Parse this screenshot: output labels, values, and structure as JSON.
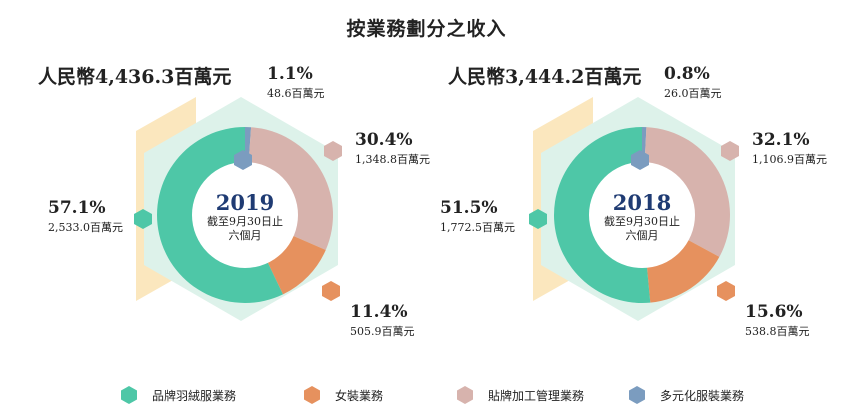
{
  "title": "按業務劃分之收入",
  "colors": {
    "branded": "#4ec7a7",
    "womens": "#e6915e",
    "oem": "#d7b3ad",
    "diversified": "#7b9cbf",
    "hex_bg": "#ddf2ea",
    "hex_bar": "#fbe7be",
    "year_text": "#1f3b73"
  },
  "legend": [
    {
      "label": "品牌羽絨服業務",
      "color": "#4ec7a7"
    },
    {
      "label": "女裝業務",
      "color": "#e6915e"
    },
    {
      "label": "貼牌加工管理業務",
      "color": "#d7b3ad"
    },
    {
      "label": "多元化服裝業務",
      "color": "#7b9cbf"
    }
  ],
  "chart_data": [
    {
      "type": "pie",
      "donut": true,
      "total": "人民幣4,436.3百萬元",
      "center_year": "2019",
      "center_label_1": "截至9月30日止",
      "center_label_2": "六個月",
      "segments": [
        {
          "name": "多元化服裝業務",
          "percent": 1.1,
          "percent_label": "1.1%",
          "amount_label": "48.6百萬元",
          "color": "#7b9cbf"
        },
        {
          "name": "貼牌加工管理業務",
          "percent": 30.4,
          "percent_label": "30.4%",
          "amount_label": "1,348.8百萬元",
          "color": "#d7b3ad"
        },
        {
          "name": "女裝業務",
          "percent": 11.4,
          "percent_label": "11.4%",
          "amount_label": "505.9百萬元",
          "color": "#e6915e"
        },
        {
          "name": "品牌羽絨服業務",
          "percent": 57.1,
          "percent_label": "57.1%",
          "amount_label": "2,533.0百萬元",
          "color": "#4ec7a7"
        }
      ]
    },
    {
      "type": "pie",
      "donut": true,
      "total": "人民幣3,444.2百萬元",
      "center_year": "2018",
      "center_label_1": "截至9月30日止",
      "center_label_2": "六個月",
      "segments": [
        {
          "name": "多元化服裝業務",
          "percent": 0.8,
          "percent_label": "0.8%",
          "amount_label": "26.0百萬元",
          "color": "#7b9cbf"
        },
        {
          "name": "貼牌加工管理業務",
          "percent": 32.1,
          "percent_label": "32.1%",
          "amount_label": "1,106.9百萬元",
          "color": "#d7b3ad"
        },
        {
          "name": "女裝業務",
          "percent": 15.6,
          "percent_label": "15.6%",
          "amount_label": "538.8百萬元",
          "color": "#e6915e"
        },
        {
          "name": "品牌羽絨服業務",
          "percent": 51.5,
          "percent_label": "51.5%",
          "amount_label": "1,772.5百萬元",
          "color": "#4ec7a7"
        }
      ]
    }
  ]
}
